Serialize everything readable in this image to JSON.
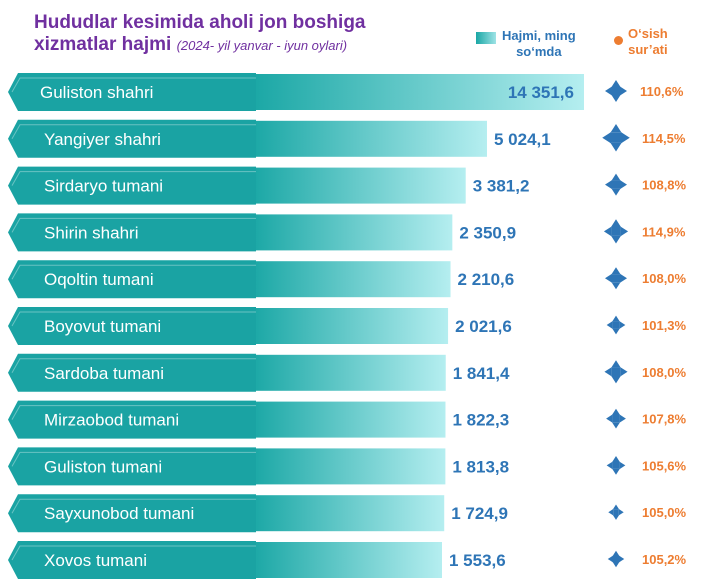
{
  "header": {
    "title_line1": "Hududlar kesimida aholi jon boshiga",
    "title_line2": "xizmatlar hajmi",
    "subtitle": "(2024- yil yanvar - iyun oylari)"
  },
  "legend": {
    "volume_line1": "Hajmi, ming",
    "volume_line2": "so‘mda",
    "growth_line1": "O‘sish",
    "growth_line2": "sur’ati"
  },
  "colors": {
    "bar_start": "#1aa7a5",
    "bar_end": "#b5eef0",
    "tab": "#1aa3a3",
    "value_text": "#2e75b6",
    "growth_text": "#ed7d31",
    "icon": "#2e75b6",
    "title": "#7030a0"
  },
  "chart_data": {
    "type": "bar",
    "orientation": "horizontal",
    "categories": [
      "Guliston shahri",
      "Yangiyer shahri",
      "Sirdaryo tumani",
      "Shirin shahri",
      "Oqoltin tumani",
      "Boyovut tumani",
      "Sardoba tumani",
      "Mirzaobod tumani",
      "Guliston tumani",
      "Sayxunobod tumani",
      "Xovos tumani"
    ],
    "series": [
      {
        "name": "Hajmi, ming so‘mda",
        "values": [
          14351.6,
          5024.1,
          3381.2,
          2350.9,
          2210.6,
          2021.6,
          1841.4,
          1822.3,
          1813.8,
          1724.9,
          1553.6
        ],
        "labels": [
          "14 351,6",
          "5 024,1",
          "3 381,2",
          "2 350,9",
          "2 210,6",
          "2 021,6",
          "1 841,4",
          "1 822,3",
          "1 813,8",
          "1 724,9",
          "1 553,6"
        ]
      },
      {
        "name": "O‘sish sur’ati",
        "values": [
          110.6,
          114.5,
          108.8,
          114.9,
          108.0,
          101.3,
          108.0,
          107.8,
          105.6,
          105.0,
          105.2
        ],
        "labels": [
          "110,6%",
          "114,5%",
          "108,8%",
          "114,9%",
          "108,0%",
          "101,3%",
          "108,0%",
          "107,8%",
          "105,6%",
          "105,0%",
          "105,2%"
        ]
      }
    ],
    "icon": "four-way-arrow-icon"
  }
}
